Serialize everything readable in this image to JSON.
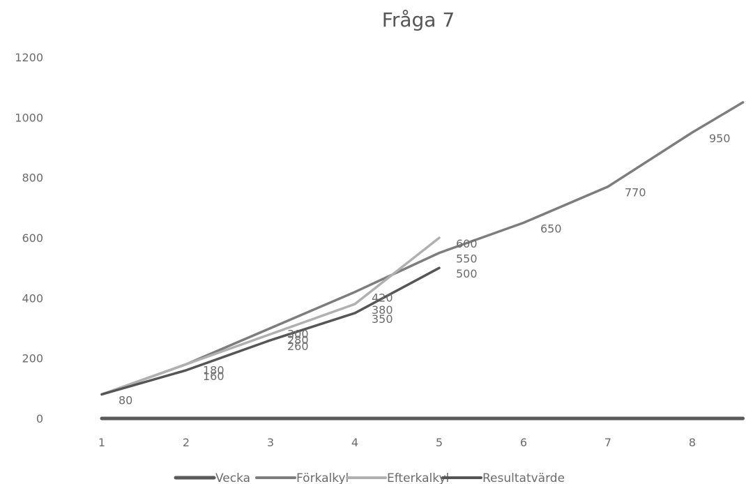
{
  "chart_data": {
    "type": "line",
    "title": "Fråga 7",
    "xlabel": "",
    "ylabel": "",
    "x": [
      1,
      2,
      3,
      4,
      5,
      6,
      7,
      8
    ],
    "xlim": [
      1,
      8.6
    ],
    "ylim": [
      0,
      1200
    ],
    "yticks": [
      0,
      200,
      400,
      600,
      800,
      1000,
      1200
    ],
    "grid": false,
    "legend_position": "bottom",
    "series": [
      {
        "name": "Vecka",
        "color": "#5a5a5a",
        "points": [
          [
            1,
            0
          ],
          [
            8.6,
            0
          ]
        ],
        "labels": []
      },
      {
        "name": "Förkalkyl",
        "color": "#7d7d7d",
        "points": [
          [
            1,
            80
          ],
          [
            2,
            180
          ],
          [
            3,
            300
          ],
          [
            4,
            420
          ],
          [
            5,
            550
          ],
          [
            6,
            650
          ],
          [
            7,
            770
          ],
          [
            8,
            950
          ],
          [
            8.6,
            1050
          ]
        ],
        "labels": [
          {
            "x": 3,
            "y": 300,
            "text": "300"
          },
          {
            "x": 4,
            "y": 420,
            "text": "420"
          },
          {
            "x": 5,
            "y": 550,
            "text": "550"
          },
          {
            "x": 6,
            "y": 650,
            "text": "650"
          },
          {
            "x": 7,
            "y": 770,
            "text": "770"
          },
          {
            "x": 8,
            "y": 950,
            "text": "950"
          }
        ]
      },
      {
        "name": "Efterkalkyl",
        "color": "#b0b0b0",
        "points": [
          [
            1,
            80
          ],
          [
            2,
            180
          ],
          [
            3,
            280
          ],
          [
            4,
            380
          ],
          [
            5,
            600
          ]
        ],
        "labels": [
          {
            "x": 2,
            "y": 180,
            "text": "180"
          },
          {
            "x": 3,
            "y": 280,
            "text": "280"
          },
          {
            "x": 4,
            "y": 380,
            "text": "380"
          },
          {
            "x": 5,
            "y": 600,
            "text": "600"
          }
        ]
      },
      {
        "name": "Resultatvärde",
        "color": "#555555",
        "points": [
          [
            1,
            80
          ],
          [
            2,
            160
          ],
          [
            3,
            260
          ],
          [
            4,
            350
          ],
          [
            5,
            500
          ]
        ],
        "labels": [
          {
            "x": 1,
            "y": 80,
            "text": "80"
          },
          {
            "x": 2,
            "y": 160,
            "text": "160"
          },
          {
            "x": 3,
            "y": 260,
            "text": "260"
          },
          {
            "x": 4,
            "y": 350,
            "text": "350"
          },
          {
            "x": 5,
            "y": 500,
            "text": "500"
          }
        ]
      }
    ]
  }
}
